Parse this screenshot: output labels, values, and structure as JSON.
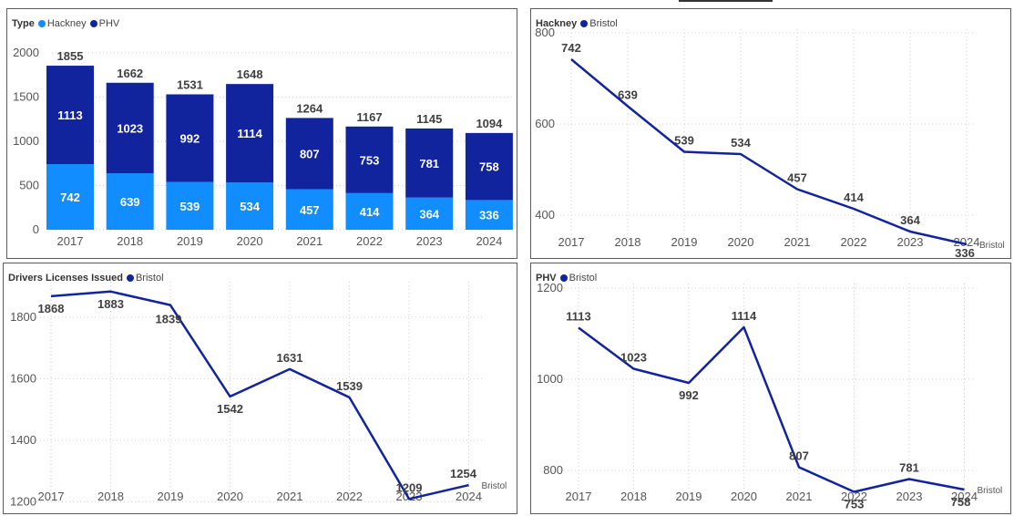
{
  "colors": {
    "hackney": "#118dff",
    "phv": "#12239e",
    "line": "#12239e",
    "grid": "#d0d0d0",
    "axis_text": "#555555",
    "label_text": "#404040"
  },
  "chart_data": [
    {
      "id": "type",
      "type": "bar",
      "stacked": true,
      "legend_title": "Type",
      "categories": [
        "2017",
        "2018",
        "2019",
        "2020",
        "2021",
        "2022",
        "2023",
        "2024"
      ],
      "series": [
        {
          "name": "Hackney",
          "color": "#118dff",
          "values": [
            742,
            639,
            539,
            534,
            457,
            414,
            364,
            336
          ]
        },
        {
          "name": "PHV",
          "color": "#12239e",
          "values": [
            1113,
            1023,
            992,
            1114,
            807,
            753,
            781,
            758
          ]
        }
      ],
      "totals": [
        1855,
        1662,
        1531,
        1648,
        1264,
        1167,
        1145,
        1094
      ],
      "ylim": [
        0,
        2000
      ],
      "yticks": [
        0,
        500,
        1000,
        1500,
        2000
      ],
      "title": "",
      "xlabel": "",
      "ylabel": ""
    },
    {
      "id": "hackney",
      "type": "line",
      "legend_title": "Hackney",
      "series_name": "Bristol",
      "end_label": "Bristol",
      "categories": [
        "2017",
        "2018",
        "2019",
        "2020",
        "2021",
        "2022",
        "2023",
        "2024"
      ],
      "values": [
        742,
        639,
        539,
        534,
        457,
        414,
        364,
        336
      ],
      "ylim": [
        328,
        808
      ],
      "yticks": [
        400,
        600,
        800
      ]
    },
    {
      "id": "drivers",
      "type": "line",
      "legend_title": "Drivers Licenses Issued",
      "series_name": "Bristol",
      "end_label": "Bristol",
      "categories": [
        "2017",
        "2018",
        "2019",
        "2020",
        "2021",
        "2022",
        "2023",
        "2024"
      ],
      "values": [
        1868,
        1883,
        1839,
        1542,
        1631,
        1539,
        1209,
        1254
      ],
      "ylim": [
        1198,
        1915
      ],
      "yticks": [
        1200,
        1400,
        1600,
        1800
      ]
    },
    {
      "id": "phv",
      "type": "line",
      "legend_title": "PHV",
      "series_name": "Bristol",
      "end_label": "Bristol",
      "categories": [
        "2017",
        "2018",
        "2019",
        "2020",
        "2021",
        "2022",
        "2023",
        "2024"
      ],
      "values": [
        1113,
        1023,
        992,
        1114,
        807,
        753,
        781,
        758
      ],
      "ylim": [
        730,
        1210
      ],
      "yticks": [
        800,
        1000,
        1200
      ]
    }
  ]
}
